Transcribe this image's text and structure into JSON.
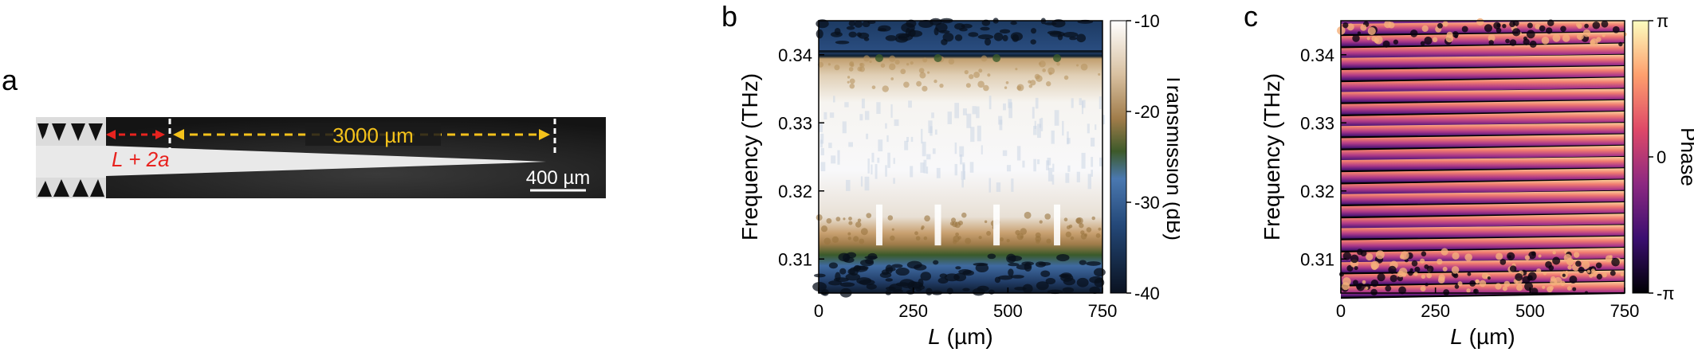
{
  "figure": {
    "panels": [
      {
        "letter": "a",
        "length_label": "3000 µm",
        "l_label_prefix": "L",
        "l_label_suffix": " + 2a",
        "scale_bar_label": "400 µm",
        "colors": {
          "red_arrow": "#e8231f",
          "yellow_arrow": "#f4c21b",
          "background": "#151515",
          "waveguide": "#e9e9e9"
        }
      },
      {
        "letter": "b",
        "ylabel": "Frequency (THz)",
        "xlabel_italic": "L",
        "xlabel_rest": " (µm)",
        "colorbar_label": "Transmission (dB)",
        "colorbar_ticks": [
          "-10",
          "-20",
          "-30",
          "-40"
        ],
        "colormap": [
          "#0a1220",
          "#244878",
          "#4a78b0",
          "#3d5a2a",
          "#a07c4a",
          "#d8c0a0",
          "#ffffff"
        ]
      },
      {
        "letter": "c",
        "ylabel": "Frequency (THz)",
        "xlabel_italic": "L",
        "xlabel_rest": " (µm)",
        "colorbar_label": "Phase",
        "colorbar_ticks": [
          "π",
          "0",
          "-π"
        ],
        "colormap": [
          "#000004",
          "#3b0f70",
          "#8c2981",
          "#de4968",
          "#fe9f6d",
          "#fcfdbf"
        ]
      }
    ]
  },
  "chart_data": [
    {
      "type": "heatmap",
      "title": "",
      "xlabel": "L (µm)",
      "ylabel": "Frequency (THz)",
      "colorbar_label": "Transmission (dB)",
      "xlim": [
        0,
        750
      ],
      "ylim": [
        0.305,
        0.345
      ],
      "x_ticks": [
        0,
        250,
        500,
        750
      ],
      "y_ticks": [
        0.31,
        0.32,
        0.33,
        0.34
      ],
      "x_tick_labels": [
        "0",
        "250",
        "500",
        "750"
      ],
      "y_tick_labels": [
        "0.31",
        "0.32",
        "0.33",
        "0.34"
      ],
      "zlim": [
        -40,
        -10
      ],
      "passband_THz": [
        0.3125,
        0.3405
      ],
      "resonance_L_um": [
        160,
        315,
        470,
        630
      ],
      "grid": false
    },
    {
      "type": "heatmap",
      "title": "",
      "xlabel": "L (µm)",
      "ylabel": "Frequency (THz)",
      "colorbar_label": "Phase",
      "xlim": [
        0,
        750
      ],
      "ylim": [
        0.305,
        0.345
      ],
      "x_ticks": [
        0,
        250,
        500,
        750
      ],
      "y_ticks": [
        0.31,
        0.32,
        0.33,
        0.34
      ],
      "x_tick_labels": [
        "0",
        "250",
        "500",
        "750"
      ],
      "y_tick_labels": [
        "0.31",
        "0.32",
        "0.33",
        "0.34"
      ],
      "zlim": [
        "-π",
        "π"
      ],
      "grid": false
    }
  ]
}
